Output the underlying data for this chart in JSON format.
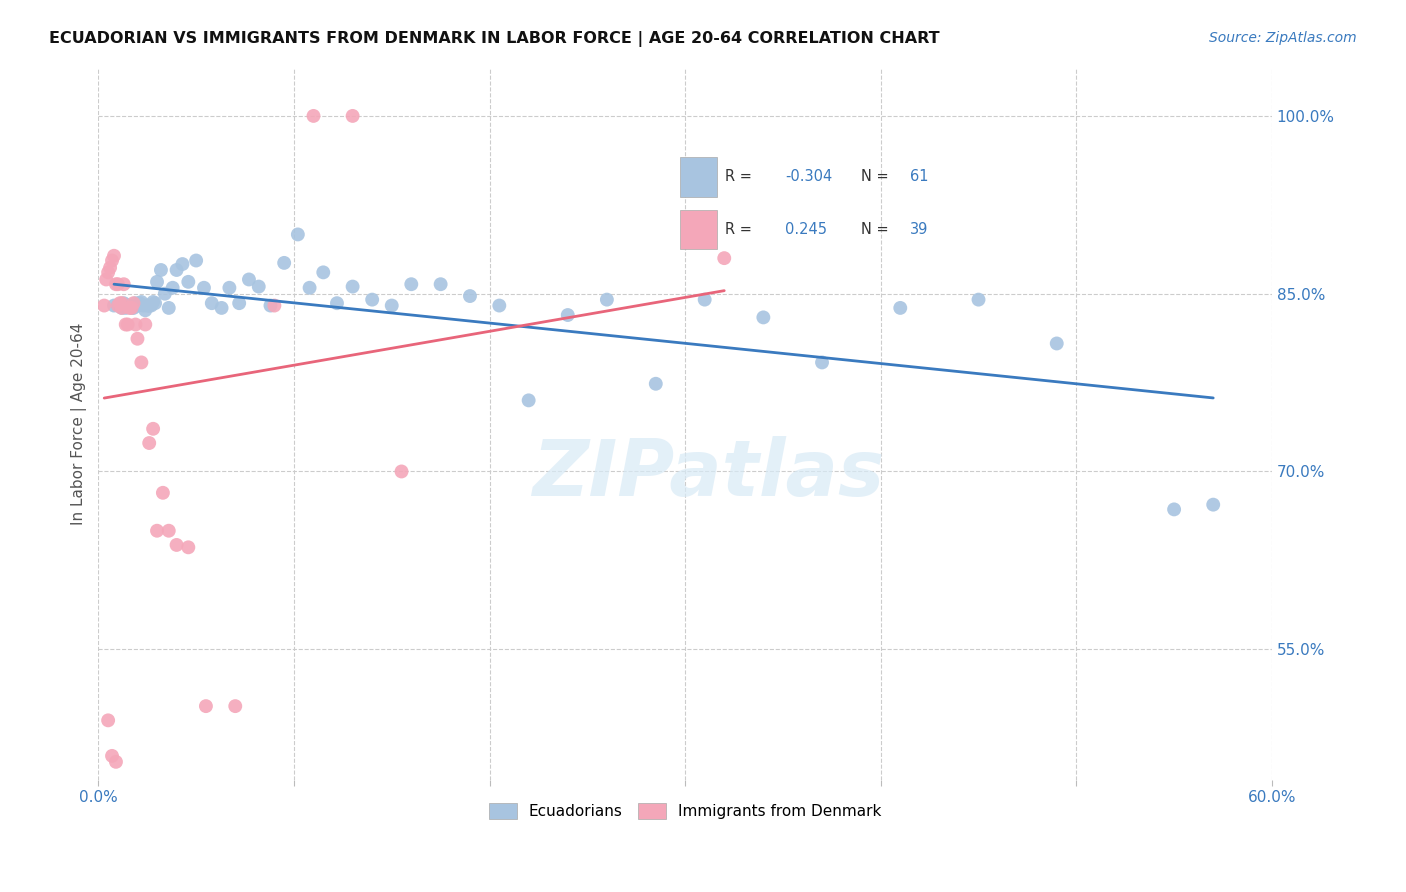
{
  "title": "ECUADORIAN VS IMMIGRANTS FROM DENMARK IN LABOR FORCE | AGE 20-64 CORRELATION CHART",
  "source": "Source: ZipAtlas.com",
  "ylabel": "In Labor Force | Age 20-64",
  "xlim": [
    0.0,
    0.6
  ],
  "ylim": [
    0.44,
    1.04
  ],
  "xticks": [
    0.0,
    0.1,
    0.2,
    0.3,
    0.4,
    0.5,
    0.6
  ],
  "xticklabels": [
    "0.0%",
    "",
    "",
    "",
    "",
    "",
    "60.0%"
  ],
  "ytick_positions": [
    0.55,
    0.7,
    0.85,
    1.0
  ],
  "yticklabels": [
    "55.0%",
    "70.0%",
    "85.0%",
    "100.0%"
  ],
  "blue_R": -0.304,
  "blue_N": 61,
  "pink_R": 0.245,
  "pink_N": 39,
  "blue_color": "#a8c4e0",
  "pink_color": "#f4a7b9",
  "blue_line_color": "#3a7abf",
  "pink_line_color": "#e8657a",
  "watermark": "ZIPatlas",
  "blue_scatter_x": [
    0.008,
    0.01,
    0.012,
    0.013,
    0.014,
    0.015,
    0.016,
    0.017,
    0.018,
    0.019,
    0.02,
    0.021,
    0.022,
    0.023,
    0.024,
    0.025,
    0.026,
    0.027,
    0.028,
    0.029,
    0.03,
    0.032,
    0.034,
    0.036,
    0.038,
    0.04,
    0.043,
    0.046,
    0.05,
    0.054,
    0.058,
    0.063,
    0.067,
    0.072,
    0.077,
    0.082,
    0.088,
    0.095,
    0.102,
    0.108,
    0.115,
    0.122,
    0.13,
    0.14,
    0.15,
    0.16,
    0.175,
    0.19,
    0.205,
    0.22,
    0.24,
    0.26,
    0.285,
    0.31,
    0.34,
    0.37,
    0.41,
    0.45,
    0.49,
    0.55,
    0.57
  ],
  "blue_scatter_y": [
    0.84,
    0.84,
    0.838,
    0.842,
    0.838,
    0.84,
    0.84,
    0.838,
    0.838,
    0.842,
    0.84,
    0.842,
    0.843,
    0.84,
    0.836,
    0.84,
    0.84,
    0.84,
    0.843,
    0.842,
    0.86,
    0.87,
    0.85,
    0.838,
    0.855,
    0.87,
    0.875,
    0.86,
    0.878,
    0.855,
    0.842,
    0.838,
    0.855,
    0.842,
    0.862,
    0.856,
    0.84,
    0.876,
    0.9,
    0.855,
    0.868,
    0.842,
    0.856,
    0.845,
    0.84,
    0.858,
    0.858,
    0.848,
    0.84,
    0.76,
    0.832,
    0.845,
    0.774,
    0.845,
    0.83,
    0.792,
    0.838,
    0.845,
    0.808,
    0.668,
    0.672
  ],
  "pink_scatter_x": [
    0.003,
    0.004,
    0.005,
    0.006,
    0.007,
    0.008,
    0.009,
    0.01,
    0.011,
    0.012,
    0.013,
    0.014,
    0.015,
    0.016,
    0.017,
    0.018,
    0.019,
    0.02,
    0.022,
    0.024,
    0.026,
    0.028,
    0.03,
    0.033,
    0.036,
    0.04,
    0.046,
    0.055,
    0.07,
    0.09,
    0.11,
    0.13,
    0.155,
    0.01,
    0.012,
    0.005,
    0.007,
    0.009,
    0.32
  ],
  "pink_scatter_y": [
    0.84,
    0.862,
    0.868,
    0.872,
    0.878,
    0.882,
    0.858,
    0.858,
    0.842,
    0.842,
    0.858,
    0.824,
    0.824,
    0.838,
    0.838,
    0.842,
    0.824,
    0.812,
    0.792,
    0.824,
    0.724,
    0.736,
    0.65,
    0.682,
    0.65,
    0.638,
    0.636,
    0.502,
    0.502,
    0.84,
    1.0,
    1.0,
    0.7,
    0.84,
    0.838,
    0.49,
    0.46,
    0.455,
    0.88
  ]
}
